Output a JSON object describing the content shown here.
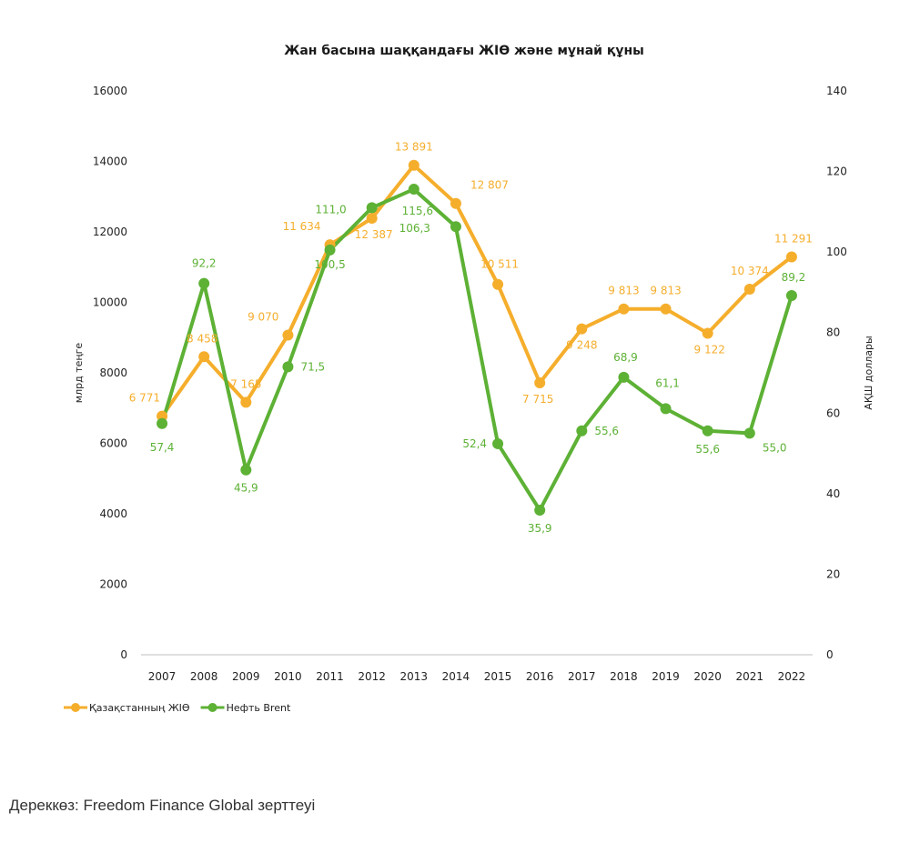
{
  "source_text": "Дереккөз: Freedom Finance Global зерттеуі",
  "chart_data": {
    "type": "line",
    "title": "Жан басына шаққандағы ЖІӨ және мұнай құны",
    "x": [
      "2007",
      "2008",
      "2009",
      "2010",
      "2011",
      "2012",
      "2013",
      "2014",
      "2015",
      "2016",
      "2017",
      "2018",
      "2019",
      "2020",
      "2021",
      "2022"
    ],
    "y_left": {
      "label": "млрд теңге",
      "range": [
        0,
        16000
      ],
      "ticks": [
        "0",
        "2000",
        "4000",
        "6000",
        "8000",
        "10000",
        "12000",
        "14000",
        "16000"
      ]
    },
    "y_right": {
      "label": "АҚШ доллары",
      "range": [
        0,
        140
      ],
      "ticks": [
        "0",
        "20",
        "40",
        "60",
        "80",
        "100",
        "120",
        "140"
      ]
    },
    "grid": false,
    "legend_position": "bottom-left",
    "series": [
      {
        "name": "Қазақстанның ЖІӨ",
        "axis": "left",
        "color": "#F5AE2C",
        "values": [
          6771,
          8458,
          7165,
          9070,
          11634,
          12387,
          13891,
          12807,
          10511,
          7715,
          9248,
          9813,
          9813,
          9122,
          10374,
          11291
        ],
        "labels": [
          "6 771",
          "8 458",
          "7 165",
          "9 070",
          "11 634",
          "12 387",
          "13 891",
          "12 807",
          "10 511",
          "7 715",
          "9 248",
          "9 813",
          "9 813",
          "9 122",
          "10 374",
          "11 291"
        ]
      },
      {
        "name": "Нефть Brent",
        "axis": "right",
        "color": "#5DB135",
        "values": [
          57.4,
          92.2,
          45.9,
          71.5,
          100.5,
          111.0,
          115.6,
          106.3,
          52.4,
          35.9,
          55.6,
          68.9,
          61.1,
          55.6,
          55.0,
          89.2
        ],
        "labels": [
          "57,4",
          "92,2",
          "45,9",
          "71,5",
          "100,5",
          "111,0",
          "115,6",
          "106,3",
          "52,4",
          "35,9",
          "55,6",
          "68,9",
          "61,1",
          "55,6",
          "55,0",
          "89,2"
        ]
      }
    ]
  }
}
